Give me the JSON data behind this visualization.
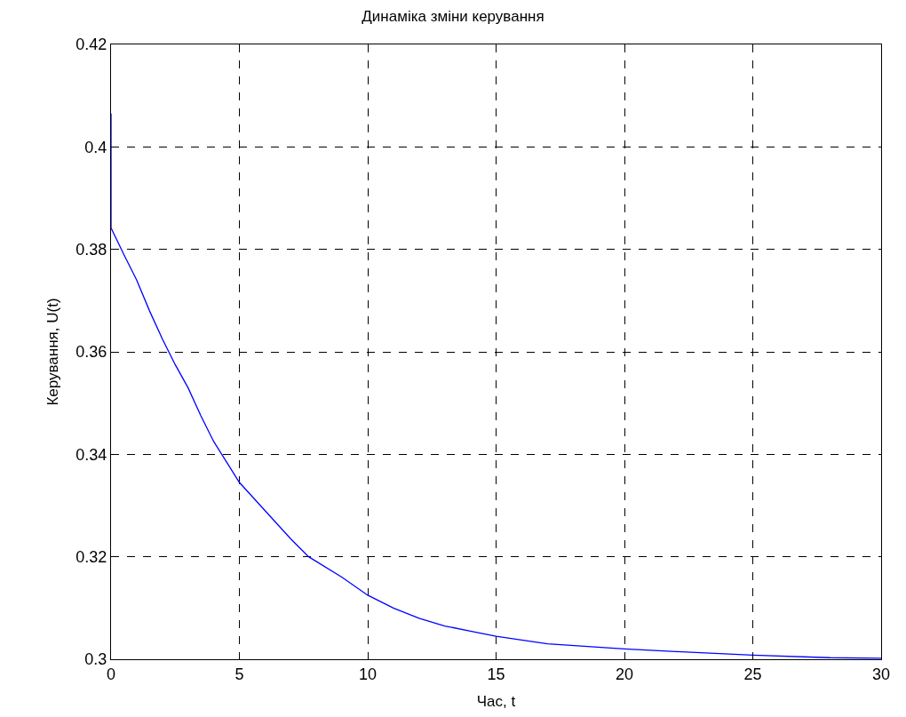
{
  "chart_data": {
    "type": "line",
    "title": "Динаміка зміни керування",
    "xlabel": "Час, t",
    "ylabel": "Керування, U(t)",
    "x": [
      0,
      0,
      0.5,
      1,
      1.5,
      2,
      2.5,
      3,
      3.5,
      4,
      5,
      6,
      7,
      7.7,
      9,
      10,
      11,
      12,
      13,
      14,
      15,
      17,
      20,
      22,
      25,
      28,
      30
    ],
    "series": [
      {
        "color": "#0000ff",
        "values": [
          0.4065,
          0.3842,
          0.379,
          0.374,
          0.368,
          0.3625,
          0.3575,
          0.353,
          0.3475,
          0.3425,
          0.3345,
          0.329,
          0.3235,
          0.32,
          0.316,
          0.3125,
          0.31,
          0.308,
          0.3065,
          0.3055,
          0.3045,
          0.303,
          0.302,
          0.3015,
          0.3008,
          0.3003,
          0.3002
        ]
      }
    ],
    "xlim": [
      0,
      30
    ],
    "xticks": [
      0,
      5,
      10,
      15,
      20,
      25,
      30
    ],
    "ylim": [
      0.3,
      0.42
    ],
    "yticks": [
      0.3,
      0.32,
      0.34,
      0.36,
      0.38,
      0.4,
      0.42
    ],
    "grid": true,
    "marker": "none",
    "line_style": "solid"
  }
}
